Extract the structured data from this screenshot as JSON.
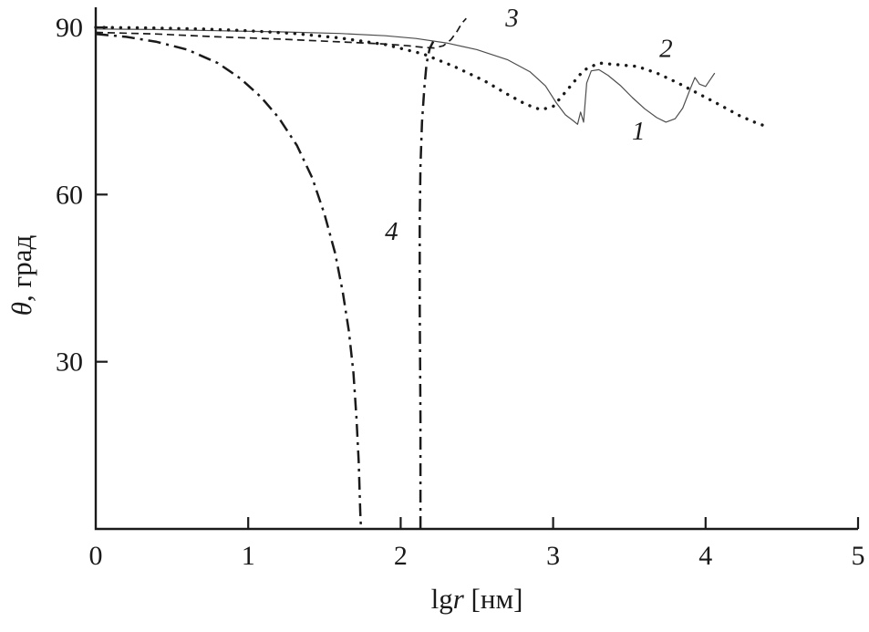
{
  "figure": {
    "background": "#ffffff",
    "axis_color": "#1a1a1a"
  },
  "chart_data": {
    "type": "line",
    "title": "",
    "xlabel": "lg r [нм]",
    "xlabel_parts": {
      "roman": "lg",
      "italic": "r",
      "unit": " [нм]"
    },
    "ylabel": "θ, град",
    "ylabel_parts": {
      "italic": "θ",
      "rest": ", град"
    },
    "xlim": [
      0,
      5
    ],
    "ylim": [
      0,
      93.6
    ],
    "x_ticks": [
      0,
      1,
      2,
      3,
      4,
      5
    ],
    "y_ticks": [
      30,
      60,
      90
    ],
    "grid": false,
    "legend": "none",
    "series": [
      {
        "name": "1",
        "line_style": "solid",
        "width": 1.2,
        "color": "#4d4d4d",
        "points": [
          [
            0,
            89.7
          ],
          [
            0.4,
            89.6
          ],
          [
            0.8,
            89.4
          ],
          [
            1.2,
            89.2
          ],
          [
            1.6,
            88.9
          ],
          [
            1.9,
            88.5
          ],
          [
            2.1,
            88.0
          ],
          [
            2.3,
            87.2
          ],
          [
            2.5,
            86.0
          ],
          [
            2.7,
            84.2
          ],
          [
            2.85,
            82.0
          ],
          [
            2.95,
            79.5
          ],
          [
            3.02,
            76.5
          ],
          [
            3.08,
            74.3
          ],
          [
            3.13,
            73.3
          ],
          [
            3.16,
            72.6
          ],
          [
            3.18,
            74.8
          ],
          [
            3.2,
            73.0
          ],
          [
            3.22,
            80.0
          ],
          [
            3.25,
            82.2
          ],
          [
            3.3,
            82.4
          ],
          [
            3.36,
            81.4
          ],
          [
            3.44,
            79.6
          ],
          [
            3.52,
            77.4
          ],
          [
            3.6,
            75.4
          ],
          [
            3.68,
            73.8
          ],
          [
            3.74,
            73.0
          ],
          [
            3.8,
            73.6
          ],
          [
            3.85,
            75.5
          ],
          [
            3.9,
            79.0
          ],
          [
            3.93,
            81.0
          ],
          [
            3.96,
            79.8
          ],
          [
            4.0,
            79.4
          ],
          [
            4.03,
            80.6
          ],
          [
            4.06,
            81.8
          ]
        ]
      },
      {
        "name": "2",
        "line_style": "dotted",
        "width": 3.4,
        "color": "#1a1a1a",
        "points": [
          [
            0,
            90.0
          ],
          [
            0.35,
            89.9
          ],
          [
            0.7,
            89.7
          ],
          [
            1.0,
            89.4
          ],
          [
            1.3,
            88.9
          ],
          [
            1.6,
            88.1
          ],
          [
            1.9,
            86.9
          ],
          [
            2.15,
            85.2
          ],
          [
            2.35,
            83.0
          ],
          [
            2.55,
            80.4
          ],
          [
            2.7,
            78.0
          ],
          [
            2.82,
            76.2
          ],
          [
            2.92,
            75.2
          ],
          [
            3.0,
            75.8
          ],
          [
            3.1,
            79.0
          ],
          [
            3.2,
            82.3
          ],
          [
            3.3,
            83.6
          ],
          [
            3.42,
            83.3
          ],
          [
            3.55,
            83.0
          ],
          [
            3.68,
            81.8
          ],
          [
            3.82,
            80.0
          ],
          [
            3.96,
            78.0
          ],
          [
            4.1,
            76.0
          ],
          [
            4.22,
            74.2
          ],
          [
            4.32,
            73.0
          ],
          [
            4.4,
            72.2
          ]
        ]
      },
      {
        "name": "3",
        "line_style": "dashed",
        "width": 1.7,
        "color": "#1a1a1a",
        "points": [
          [
            0,
            89.1
          ],
          [
            0.4,
            88.8
          ],
          [
            0.8,
            88.3
          ],
          [
            1.2,
            87.9
          ],
          [
            1.6,
            87.4
          ],
          [
            1.9,
            87.0
          ],
          [
            2.05,
            86.7
          ],
          [
            2.15,
            86.4
          ],
          [
            2.22,
            86.3
          ],
          [
            2.28,
            86.7
          ],
          [
            2.33,
            87.8
          ],
          [
            2.37,
            89.3
          ],
          [
            2.4,
            90.7
          ],
          [
            2.43,
            91.6
          ]
        ]
      },
      {
        "name": "4-left",
        "line_style": "dashdot",
        "width": 2.5,
        "color": "#1a1a1a",
        "points": [
          [
            0,
            88.8
          ],
          [
            0.2,
            88.3
          ],
          [
            0.4,
            87.4
          ],
          [
            0.6,
            86.0
          ],
          [
            0.8,
            83.6
          ],
          [
            0.95,
            80.8
          ],
          [
            1.08,
            77.6
          ],
          [
            1.2,
            73.8
          ],
          [
            1.32,
            68.8
          ],
          [
            1.42,
            63.0
          ],
          [
            1.5,
            56.5
          ],
          [
            1.57,
            49.5
          ],
          [
            1.62,
            42.5
          ],
          [
            1.66,
            35.5
          ],
          [
            1.69,
            28.0
          ],
          [
            1.71,
            20.0
          ],
          [
            1.725,
            12.0
          ],
          [
            1.735,
            3.0
          ],
          [
            1.74,
            0
          ]
        ]
      },
      {
        "name": "4-right",
        "line_style": "dashdot",
        "width": 2.5,
        "color": "#1a1a1a",
        "points": [
          [
            2.13,
            0
          ],
          [
            2.13,
            20
          ],
          [
            2.125,
            40
          ],
          [
            2.125,
            55
          ],
          [
            2.13,
            65
          ],
          [
            2.14,
            73
          ],
          [
            2.155,
            79
          ],
          [
            2.17,
            83.5
          ],
          [
            2.19,
            86.2
          ],
          [
            2.22,
            87.8
          ]
        ]
      }
    ],
    "curve_labels": [
      {
        "text": "1",
        "x": 3.56,
        "y": 71.5
      },
      {
        "text": "2",
        "x": 3.74,
        "y": 86.3
      },
      {
        "text": "3",
        "x": 2.73,
        "y": 91.8
      },
      {
        "text": "4",
        "x": 1.94,
        "y": 53.5
      }
    ]
  }
}
